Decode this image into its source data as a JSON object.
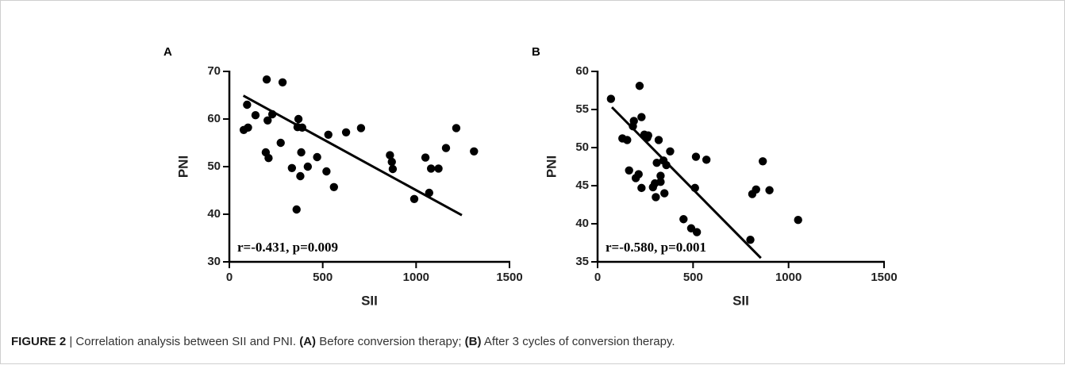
{
  "chart_data": [
    {
      "type": "scatter",
      "panel_label": "A",
      "x_label": "SII",
      "y_label": "PNI",
      "annotation": "r=-0.431, p=0.009",
      "color": "#000000",
      "x": [
        77,
        95,
        100,
        140,
        195,
        200,
        205,
        210,
        230,
        275,
        285,
        335,
        360,
        365,
        370,
        380,
        385,
        390,
        420,
        470,
        520,
        530,
        560,
        625,
        705,
        860,
        870,
        875,
        990,
        1050,
        1070,
        1080,
        1120,
        1160,
        1215,
        1310
      ],
      "values": [
        57.7,
        63,
        58.2,
        60.8,
        53,
        68.3,
        59.7,
        51.8,
        61,
        55,
        67.7,
        49.7,
        41,
        58.3,
        60,
        48,
        53,
        58.2,
        50,
        52,
        49,
        56.7,
        45.7,
        57.2,
        58.1,
        52.4,
        51,
        49.5,
        43.2,
        51.9,
        44.5,
        49.6,
        49.6,
        53.9,
        58.1,
        53.2
      ],
      "fit_line": {
        "x": [
          75,
          1245
        ],
        "y": [
          64.9,
          39.8
        ]
      },
      "xlim": [
        0,
        1500
      ],
      "xticks": [
        0,
        500,
        1000,
        1500
      ],
      "ylim": [
        30,
        70
      ],
      "yticks": [
        30,
        40,
        50,
        60,
        70
      ]
    },
    {
      "type": "scatter",
      "panel_label": "B",
      "x_label": "SII",
      "y_label": "PNI",
      "annotation": "r=-0.580, p=0.001",
      "color": "#000000",
      "x": [
        70,
        130,
        155,
        165,
        185,
        190,
        200,
        215,
        220,
        230,
        230,
        245,
        260,
        265,
        290,
        300,
        305,
        310,
        320,
        330,
        330,
        345,
        350,
        360,
        380,
        450,
        490,
        510,
        515,
        520,
        570,
        800,
        810,
        830,
        865,
        900,
        1050
      ],
      "values": [
        56.4,
        51.2,
        51,
        47,
        52.8,
        53.5,
        46,
        46.5,
        58.1,
        44.7,
        54,
        51.7,
        51.3,
        51.6,
        44.8,
        45.3,
        43.5,
        48,
        51,
        46.3,
        45.5,
        48.3,
        44,
        47.7,
        49.5,
        40.6,
        39.4,
        44.7,
        48.8,
        38.9,
        48.4,
        37.9,
        43.9,
        44.5,
        48.2,
        44.4,
        40.5
      ],
      "fit_line": {
        "x": [
          75,
          855
        ],
        "y": [
          55.3,
          35.5
        ]
      },
      "xlim": [
        0,
        1500
      ],
      "xticks": [
        0,
        500,
        1000,
        1500
      ],
      "ylim": [
        35,
        60
      ],
      "yticks": [
        35,
        40,
        45,
        50,
        55,
        60
      ]
    }
  ],
  "caption": {
    "segments": [
      {
        "text": "FIGURE 2",
        "bold": true
      },
      {
        "text": " | Correlation analysis between SII and PNI. ",
        "bold": false
      },
      {
        "text": "(A)",
        "bold": true
      },
      {
        "text": " Before conversion therapy; ",
        "bold": false
      },
      {
        "text": "(B)",
        "bold": true
      },
      {
        "text": " After 3 cycles of conversion therapy.",
        "bold": false
      }
    ]
  }
}
